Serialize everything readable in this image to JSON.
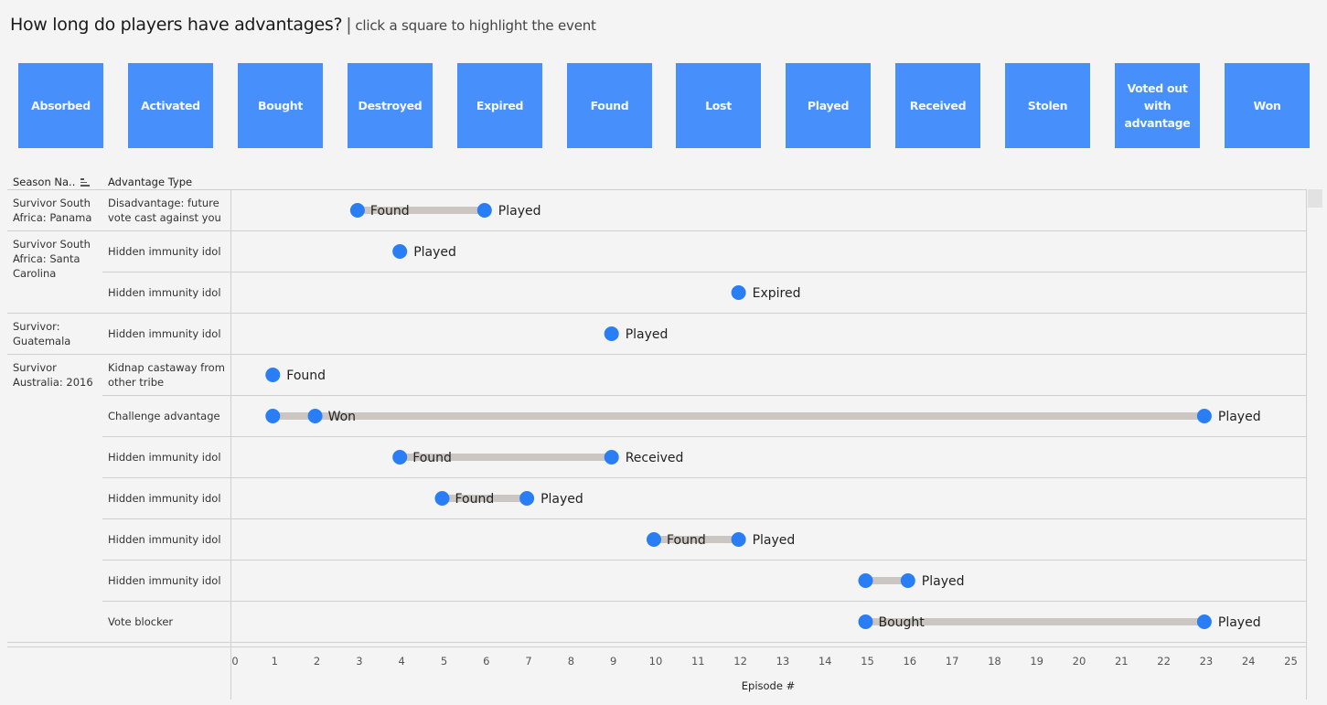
{
  "header": {
    "title": "How long do players have advantages?",
    "separator": "|",
    "subtitle": "click a square to highlight the event"
  },
  "filter_buttons": [
    {
      "label": "Absorbed"
    },
    {
      "label": "Activated"
    },
    {
      "label": "Bought"
    },
    {
      "label": "Destroyed"
    },
    {
      "label": "Expired"
    },
    {
      "label": "Found"
    },
    {
      "label": "Lost"
    },
    {
      "label": "Played"
    },
    {
      "label": "Received"
    },
    {
      "label": "Stolen"
    },
    {
      "label": "Voted out with advantage"
    },
    {
      "label": "Won"
    }
  ],
  "table": {
    "col_season": "Season Na..",
    "col_advantage": "Advantage Type",
    "sort_icon": "sort-descending-icon",
    "seasons": [
      {
        "name": "Survivor South Africa: Panama"
      },
      {
        "name": "Survivor South Africa: Santa Carolina"
      },
      {
        "name": "Survivor: Guatemala"
      },
      {
        "name": "Survivor Australia: 2016"
      }
    ]
  },
  "colors": {
    "button": "#478ffa",
    "dot": "#2a7ef5",
    "bar": "#cbc6c1"
  },
  "chart_data": {
    "type": "dumbbell",
    "title": "How long do players have advantages?",
    "xlabel": "Episode #",
    "xlim": [
      0,
      25
    ],
    "xticks": [
      "0",
      "1",
      "2",
      "3",
      "4",
      "5",
      "6",
      "7",
      "8",
      "9",
      "10",
      "11",
      "12",
      "13",
      "14",
      "15",
      "16",
      "17",
      "18",
      "19",
      "20",
      "21",
      "22",
      "23",
      "24",
      "25"
    ],
    "rows": [
      {
        "season": 0,
        "advantage": "Disadvantage: future vote cast against you",
        "start": 3,
        "end": 6,
        "start_label": "Found",
        "end_label": "Played"
      },
      {
        "season": 1,
        "advantage": "Hidden immunity idol",
        "start": null,
        "end": 4,
        "start_label": "",
        "end_label": "Played"
      },
      {
        "season": 1,
        "advantage": "Hidden immunity idol",
        "start": null,
        "end": 12,
        "start_label": "",
        "end_label": "Expired"
      },
      {
        "season": 2,
        "advantage": "Hidden immunity idol",
        "start": null,
        "end": 9,
        "start_label": "",
        "end_label": "Played"
      },
      {
        "season": 3,
        "advantage": "Kidnap castaway from other tribe",
        "start": null,
        "end": 1,
        "start_label": "",
        "end_label": "Found"
      },
      {
        "season": 3,
        "advantage": "Challenge advantage",
        "start": 1,
        "mid": 2,
        "end": 23,
        "start_label": "",
        "mid_label": "Won",
        "end_label": "Played"
      },
      {
        "season": 3,
        "advantage": "Hidden immunity idol",
        "start": 4,
        "end": 9,
        "start_label": "Found",
        "end_label": "Received"
      },
      {
        "season": 3,
        "advantage": "Hidden immunity idol",
        "start": 5,
        "end": 7,
        "start_label": "Found",
        "end_label": "Played"
      },
      {
        "season": 3,
        "advantage": "Hidden immunity idol",
        "start": 10,
        "end": 12,
        "start_label": "Found",
        "end_label": "Played"
      },
      {
        "season": 3,
        "advantage": "Hidden immunity idol",
        "start": 15,
        "end": 16,
        "start_label": "",
        "end_label": "Played"
      },
      {
        "season": 3,
        "advantage": "Vote blocker",
        "start": 15,
        "end": 23,
        "start_label": "Bought",
        "end_label": "Played"
      }
    ]
  }
}
